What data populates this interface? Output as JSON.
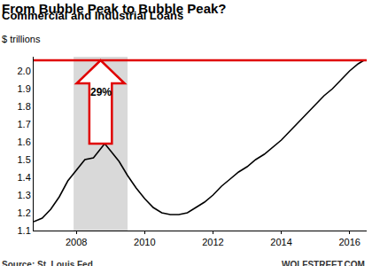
{
  "chart_data": {
    "type": "line",
    "title": "From Bubble Peak to Bubble Peak?",
    "subtitle": "Commercial and Industrial Loans",
    "y_label": "$ trillions",
    "source": "Source: St. Louis Fed",
    "credit": "WOLFSTREET.COM",
    "x": [
      2006.75,
      2007.0,
      2007.25,
      2007.5,
      2007.75,
      2008.0,
      2008.25,
      2008.5,
      2008.75,
      2008.83,
      2009.0,
      2009.25,
      2009.5,
      2009.75,
      2010.0,
      2010.25,
      2010.5,
      2010.75,
      2011.0,
      2011.25,
      2011.5,
      2011.75,
      2012.0,
      2012.25,
      2012.5,
      2012.75,
      2013.0,
      2013.25,
      2013.5,
      2013.75,
      2014.0,
      2014.25,
      2014.5,
      2014.75,
      2015.0,
      2015.25,
      2015.5,
      2015.75,
      2016.0,
      2016.25,
      2016.42
    ],
    "values": [
      1.15,
      1.17,
      1.22,
      1.29,
      1.38,
      1.44,
      1.5,
      1.51,
      1.57,
      1.59,
      1.55,
      1.49,
      1.41,
      1.34,
      1.28,
      1.23,
      1.2,
      1.19,
      1.19,
      1.2,
      1.23,
      1.26,
      1.3,
      1.35,
      1.39,
      1.43,
      1.46,
      1.5,
      1.53,
      1.57,
      1.61,
      1.66,
      1.71,
      1.76,
      1.81,
      1.86,
      1.9,
      1.95,
      2.0,
      2.04,
      2.06
    ],
    "color": "#000000",
    "xlim": [
      2006.75,
      2016.5
    ],
    "xticks": [
      2008,
      2010,
      2012,
      2014,
      2016
    ],
    "ylim": [
      1.1,
      2.08
    ],
    "yticks": [
      1.1,
      1.2,
      1.3,
      1.4,
      1.5,
      1.6,
      1.7,
      1.8,
      1.9,
      {
        "value": 2,
        "label": "2.0"
      }
    ],
    "grid": false,
    "shading": [
      2007.92,
      2009.5
    ],
    "reference_line": {
      "value": 2.06,
      "color": "#e00000"
    },
    "annotations": [
      {
        "text": "29%",
        "from": 1.59,
        "to": 2.06
      }
    ]
  }
}
